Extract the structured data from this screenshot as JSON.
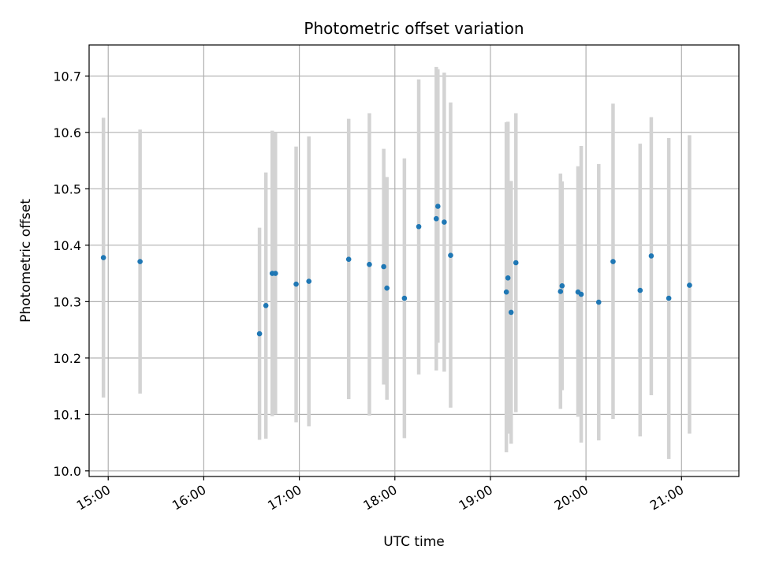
{
  "chart_data": {
    "type": "scatter",
    "title": "Photometric offset variation",
    "xlabel": "UTC time",
    "ylabel": "Photometric offset",
    "x_unit": "UTC time (HH:MM)",
    "xlim": [
      "14:48",
      "21:36"
    ],
    "ylim": [
      9.99,
      10.755
    ],
    "xticks": [
      "15:00",
      "16:00",
      "17:00",
      "18:00",
      "19:00",
      "20:00",
      "21:00"
    ],
    "yticks": [
      10.0,
      10.1,
      10.2,
      10.3,
      10.4,
      10.5,
      10.6,
      10.7
    ],
    "ytick_labels": [
      "10.0",
      "10.1",
      "10.2",
      "10.3",
      "10.4",
      "10.5",
      "10.6",
      "10.7"
    ],
    "grid": true,
    "marker_color": "#1f77b4",
    "errorbar_color": "#d3d3d3",
    "points": [
      {
        "x": "14:57",
        "y": 10.378,
        "ylo": 10.13,
        "yhi": 10.626
      },
      {
        "x": "15:20",
        "y": 10.371,
        "ylo": 10.137,
        "yhi": 10.605
      },
      {
        "x": "16:35",
        "y": 10.243,
        "ylo": 10.055,
        "yhi": 10.431
      },
      {
        "x": "16:39",
        "y": 10.293,
        "ylo": 10.057,
        "yhi": 10.529
      },
      {
        "x": "16:43",
        "y": 10.35,
        "ylo": 10.097,
        "yhi": 10.603
      },
      {
        "x": "16:45",
        "y": 10.35,
        "ylo": 10.1,
        "yhi": 10.6
      },
      {
        "x": "16:58",
        "y": 10.331,
        "ylo": 10.086,
        "yhi": 10.575
      },
      {
        "x": "17:06",
        "y": 10.336,
        "ylo": 10.079,
        "yhi": 10.593
      },
      {
        "x": "17:31",
        "y": 10.375,
        "ylo": 10.127,
        "yhi": 10.624
      },
      {
        "x": "17:44",
        "y": 10.366,
        "ylo": 10.098,
        "yhi": 10.634
      },
      {
        "x": "17:53",
        "y": 10.362,
        "ylo": 10.153,
        "yhi": 10.571
      },
      {
        "x": "17:55",
        "y": 10.324,
        "ylo": 10.126,
        "yhi": 10.521
      },
      {
        "x": "18:06",
        "y": 10.306,
        "ylo": 10.058,
        "yhi": 10.554
      },
      {
        "x": "18:15",
        "y": 10.433,
        "ylo": 10.171,
        "yhi": 10.694
      },
      {
        "x": "18:26",
        "y": 10.447,
        "ylo": 10.178,
        "yhi": 10.716
      },
      {
        "x": "18:27",
        "y": 10.469,
        "ylo": 10.227,
        "yhi": 10.712
      },
      {
        "x": "18:31",
        "y": 10.441,
        "ylo": 10.176,
        "yhi": 10.706
      },
      {
        "x": "18:35",
        "y": 10.382,
        "ylo": 10.112,
        "yhi": 10.653
      },
      {
        "x": "19:10",
        "y": 10.317,
        "ylo": 10.033,
        "yhi": 10.618
      },
      {
        "x": "19:11",
        "y": 10.342,
        "ylo": 10.066,
        "yhi": 10.619
      },
      {
        "x": "19:13",
        "y": 10.281,
        "ylo": 10.048,
        "yhi": 10.514
      },
      {
        "x": "19:16",
        "y": 10.369,
        "ylo": 10.104,
        "yhi": 10.634
      },
      {
        "x": "19:44",
        "y": 10.318,
        "ylo": 10.11,
        "yhi": 10.527
      },
      {
        "x": "19:45",
        "y": 10.328,
        "ylo": 10.143,
        "yhi": 10.513
      },
      {
        "x": "19:55",
        "y": 10.317,
        "ylo": 10.096,
        "yhi": 10.54
      },
      {
        "x": "19:57",
        "y": 10.313,
        "ylo": 10.05,
        "yhi": 10.576
      },
      {
        "x": "20:08",
        "y": 10.299,
        "ylo": 10.054,
        "yhi": 10.544
      },
      {
        "x": "20:17",
        "y": 10.371,
        "ylo": 10.092,
        "yhi": 10.651
      },
      {
        "x": "20:34",
        "y": 10.32,
        "ylo": 10.061,
        "yhi": 10.58
      },
      {
        "x": "20:41",
        "y": 10.381,
        "ylo": 10.134,
        "yhi": 10.627
      },
      {
        "x": "20:52",
        "y": 10.306,
        "ylo": 10.021,
        "yhi": 10.59
      },
      {
        "x": "21:05",
        "y": 10.329,
        "ylo": 10.066,
        "yhi": 10.595
      }
    ]
  }
}
